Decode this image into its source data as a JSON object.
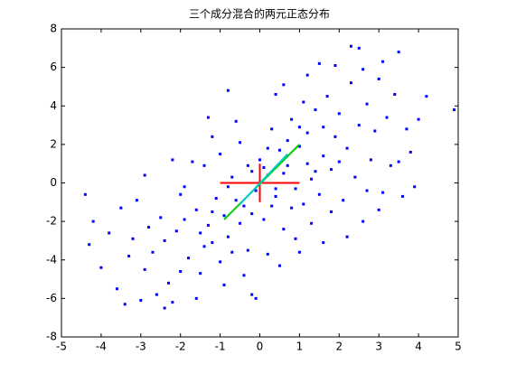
{
  "chart_data": {
    "type": "scatter",
    "title": "三个成分混合的两元正态分布",
    "xlim": [
      -5,
      5
    ],
    "ylim": [
      -8,
      8
    ],
    "xticks": [
      -5,
      -4,
      -3,
      -2,
      -1,
      0,
      1,
      2,
      3,
      4,
      5
    ],
    "yticks": [
      -8,
      -6,
      -4,
      -2,
      0,
      2,
      4,
      6,
      8
    ],
    "series": [
      {
        "color": "#0000ff",
        "x": [
          -4.4,
          -4.3,
          -4.2,
          -4.0,
          -3.6,
          -3.0,
          -2.2,
          4.9,
          3.5,
          2.3,
          2.5,
          3.8,
          3.6,
          3.1,
          1.5,
          -3.5,
          -3.2,
          -2.9,
          -2.7,
          -2.5,
          -2.3,
          -2.1,
          -1.9,
          -1.8,
          -1.6,
          -1.5,
          -1.4,
          -1.3,
          -1.2,
          -1.1,
          -1.0,
          -0.9,
          -0.8,
          -0.7,
          -0.6,
          -0.5,
          -0.4,
          -0.3,
          -0.2,
          -0.1,
          0.0,
          0.1,
          0.2,
          0.3,
          0.4,
          0.5,
          0.6,
          0.7,
          0.8,
          0.9,
          1.0,
          1.1,
          1.2,
          1.3,
          1.4,
          1.5,
          1.6,
          1.7,
          1.8,
          1.9,
          2.0,
          2.1,
          2.2,
          2.3,
          2.4,
          2.5,
          2.6,
          2.7,
          2.8,
          2.9,
          3.0,
          3.2,
          3.3,
          3.4,
          3.7,
          3.9,
          1.1,
          0.4,
          -0.6,
          -1.2,
          -1.7,
          -2.0,
          -2.4,
          -2.8,
          -3.3,
          -3.8,
          -0.9,
          -0.4,
          0.2,
          0.9,
          1.3,
          1.8,
          2.2,
          -1.6,
          -2.6,
          -0.2,
          0.5,
          -1.0,
          -2.0,
          -1.4,
          0.3,
          -0.3,
          0.6,
          -0.8,
          0.1,
          0.8,
          -0.5,
          1.2,
          -1.2,
          0.4,
          1.6,
          2.0,
          1.0,
          0.2,
          -0.2,
          -0.7,
          1.4,
          0.7,
          -1.5,
          -1.9,
          2.6,
          3.1,
          1.9,
          1.2,
          0.6,
          -0.8,
          -1.3,
          -2.2,
          -2.9,
          -3.1,
          4.2,
          4.0,
          3.5,
          2.7,
          3.0,
          1.6,
          1.0,
          -0.1,
          -3.4,
          -2.4
        ],
        "y": [
          -0.6,
          -3.2,
          -2.0,
          -4.4,
          -5.5,
          -6.1,
          -6.2,
          3.8,
          6.8,
          7.1,
          7.0,
          1.6,
          -0.7,
          -0.5,
          6.2,
          -1.3,
          -2.9,
          -4.5,
          -3.6,
          -1.8,
          -5.2,
          -2.5,
          -0.2,
          -3.9,
          -1.4,
          -4.7,
          0.9,
          -2.2,
          -3.1,
          -0.8,
          1.5,
          -1.7,
          -2.8,
          0.3,
          -0.9,
          2.1,
          -1.2,
          -3.5,
          0.6,
          -0.4,
          1.2,
          -1.9,
          0.4,
          2.8,
          -0.7,
          1.7,
          -2.4,
          0.9,
          3.3,
          -0.3,
          1.9,
          -1.1,
          2.6,
          0.2,
          3.8,
          -0.6,
          1.4,
          4.5,
          0.7,
          2.4,
          3.6,
          -0.9,
          1.8,
          5.2,
          0.3,
          3.0,
          -2.0,
          4.1,
          1.2,
          2.7,
          5.4,
          3.4,
          0.9,
          4.6,
          2.8,
          -0.2,
          4.2,
          4.6,
          3.2,
          2.4,
          1.1,
          -0.6,
          -3.0,
          -2.3,
          -3.8,
          -2.6,
          -5.3,
          -4.8,
          -3.7,
          -2.9,
          -2.1,
          -1.5,
          -2.8,
          -6.0,
          -5.8,
          -5.8,
          -4.3,
          -4.1,
          -4.6,
          -3.3,
          -1.2,
          0.9,
          0.5,
          -0.2,
          0.8,
          -1.3,
          -2.1,
          1.0,
          -1.5,
          -0.3,
          2.9,
          1.1,
          2.9,
          1.8,
          -1.6,
          -3.6,
          0.6,
          2.2,
          -2.6,
          -1.9,
          5.9,
          6.3,
          6.1,
          5.6,
          5.1,
          4.8,
          3.4,
          1.2,
          0.4,
          -0.9,
          4.5,
          3.3,
          1.1,
          -0.4,
          -1.4,
          -3.1,
          -3.6,
          -6.0,
          -6.3,
          -6.5
        ]
      }
    ],
    "lines": [
      {
        "color": "#ff0000",
        "x": [
          -1,
          1
        ],
        "y": [
          0,
          0
        ]
      },
      {
        "color": "#ff0000",
        "x": [
          0,
          0
        ],
        "y": [
          -1,
          1
        ]
      },
      {
        "color": "#00cc00",
        "x": [
          -0.9,
          1.0
        ],
        "y": [
          -1.9,
          2.0
        ]
      },
      {
        "color": "#00cccc",
        "x": [
          -0.5,
          0.7
        ],
        "y": [
          -1.1,
          1.5
        ]
      }
    ]
  }
}
